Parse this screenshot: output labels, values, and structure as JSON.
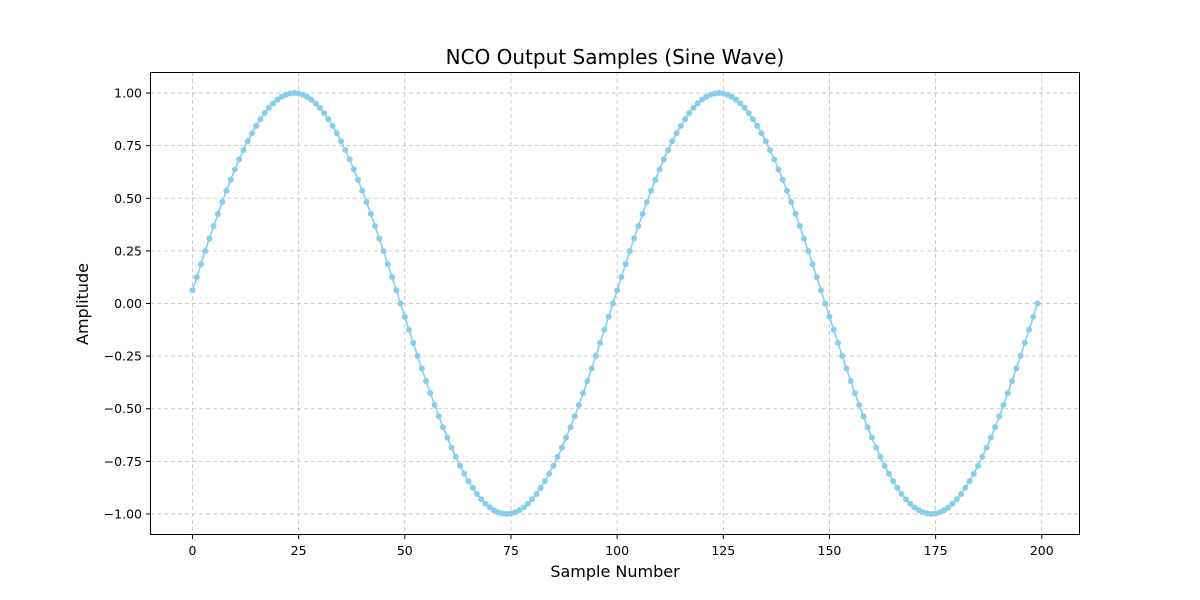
{
  "chart_data": {
    "type": "line",
    "title": "NCO Output Samples (Sine Wave)",
    "xlabel": "Sample Number",
    "ylabel": "Amplitude",
    "xlim": [
      -10,
      209
    ],
    "ylim": [
      -1.1,
      1.1
    ],
    "x_ticks": [
      0,
      25,
      50,
      75,
      100,
      125,
      150,
      175,
      200
    ],
    "y_ticks": [
      -1.0,
      -0.75,
      -0.5,
      -0.25,
      0.0,
      0.25,
      0.5,
      0.75,
      1.0
    ],
    "x_tick_labels": [
      "0",
      "25",
      "50",
      "75",
      "100",
      "125",
      "150",
      "175",
      "200"
    ],
    "y_tick_labels": [
      "−1.00",
      "−0.75",
      "−0.50",
      "−0.25",
      "0.00",
      "0.25",
      "0.50",
      "0.75",
      "1.00"
    ],
    "grid": true,
    "marker": "circle",
    "color": "#87ceeb",
    "series": [
      {
        "x": [
          0,
          1,
          2,
          3,
          4,
          5,
          6,
          7,
          8,
          9,
          10,
          11,
          12,
          13,
          14,
          15,
          16,
          17,
          18,
          19,
          20,
          21,
          22,
          23,
          24,
          25,
          26,
          27,
          28,
          29,
          30,
          31,
          32,
          33,
          34,
          35,
          36,
          37,
          38,
          39,
          40,
          41,
          42,
          43,
          44,
          45,
          46,
          47,
          48,
          49,
          50,
          51,
          52,
          53,
          54,
          55,
          56,
          57,
          58,
          59,
          60,
          61,
          62,
          63,
          64,
          65,
          66,
          67,
          68,
          69,
          70,
          71,
          72,
          73,
          74,
          75,
          76,
          77,
          78,
          79,
          80,
          81,
          82,
          83,
          84,
          85,
          86,
          87,
          88,
          89,
          90,
          91,
          92,
          93,
          94,
          95,
          96,
          97,
          98,
          99,
          100,
          101,
          102,
          103,
          104,
          105,
          106,
          107,
          108,
          109,
          110,
          111,
          112,
          113,
          114,
          115,
          116,
          117,
          118,
          119,
          120,
          121,
          122,
          123,
          124,
          125,
          126,
          127,
          128,
          129,
          130,
          131,
          132,
          133,
          134,
          135,
          136,
          137,
          138,
          139,
          140,
          141,
          142,
          143,
          144,
          145,
          146,
          147,
          148,
          149,
          150,
          151,
          152,
          153,
          154,
          155,
          156,
          157,
          158,
          159,
          160,
          161,
          162,
          163,
          164,
          165,
          166,
          167,
          168,
          169,
          170,
          171,
          172,
          173,
          174,
          175,
          176,
          177,
          178,
          179,
          180,
          181,
          182,
          183,
          184,
          185,
          186,
          187,
          188,
          189,
          190,
          191,
          192,
          193,
          194,
          195,
          196,
          197,
          198,
          199
        ],
        "y": [
          0.063,
          0.125,
          0.187,
          0.249,
          0.309,
          0.368,
          0.426,
          0.482,
          0.536,
          0.588,
          0.637,
          0.685,
          0.729,
          0.771,
          0.809,
          0.844,
          0.876,
          0.905,
          0.93,
          0.951,
          0.969,
          0.982,
          0.992,
          0.998,
          1.0,
          0.998,
          0.992,
          0.982,
          0.969,
          0.951,
          0.93,
          0.905,
          0.876,
          0.844,
          0.809,
          0.771,
          0.729,
          0.685,
          0.637,
          0.588,
          0.536,
          0.482,
          0.426,
          0.368,
          0.309,
          0.249,
          0.187,
          0.125,
          0.063,
          0.0,
          -0.063,
          -0.125,
          -0.187,
          -0.249,
          -0.309,
          -0.368,
          -0.426,
          -0.482,
          -0.536,
          -0.588,
          -0.637,
          -0.685,
          -0.729,
          -0.771,
          -0.809,
          -0.844,
          -0.876,
          -0.905,
          -0.93,
          -0.951,
          -0.969,
          -0.982,
          -0.992,
          -0.998,
          -1.0,
          -0.998,
          -0.992,
          -0.982,
          -0.969,
          -0.951,
          -0.93,
          -0.905,
          -0.876,
          -0.844,
          -0.809,
          -0.771,
          -0.729,
          -0.685,
          -0.637,
          -0.588,
          -0.536,
          -0.482,
          -0.426,
          -0.368,
          -0.309,
          -0.249,
          -0.187,
          -0.125,
          -0.063,
          0.0,
          0.063,
          0.125,
          0.187,
          0.249,
          0.309,
          0.368,
          0.426,
          0.482,
          0.536,
          0.588,
          0.637,
          0.685,
          0.729,
          0.771,
          0.809,
          0.844,
          0.876,
          0.905,
          0.93,
          0.951,
          0.969,
          0.982,
          0.992,
          0.998,
          1.0,
          0.998,
          0.992,
          0.982,
          0.969,
          0.951,
          0.93,
          0.905,
          0.876,
          0.844,
          0.809,
          0.771,
          0.729,
          0.685,
          0.637,
          0.588,
          0.536,
          0.482,
          0.426,
          0.368,
          0.309,
          0.249,
          0.187,
          0.125,
          0.063,
          0.0,
          -0.063,
          -0.125,
          -0.187,
          -0.249,
          -0.309,
          -0.368,
          -0.426,
          -0.482,
          -0.536,
          -0.588,
          -0.637,
          -0.685,
          -0.729,
          -0.771,
          -0.809,
          -0.844,
          -0.876,
          -0.905,
          -0.93,
          -0.951,
          -0.969,
          -0.982,
          -0.992,
          -0.998,
          -1.0,
          -0.998,
          -0.992,
          -0.982,
          -0.969,
          -0.951,
          -0.93,
          -0.905,
          -0.876,
          -0.844,
          -0.809,
          -0.771,
          -0.729,
          -0.685,
          -0.637,
          -0.588,
          -0.536,
          -0.482,
          -0.426,
          -0.368,
          -0.309,
          -0.249,
          -0.187,
          -0.125,
          -0.063,
          0.0
        ]
      }
    ]
  }
}
